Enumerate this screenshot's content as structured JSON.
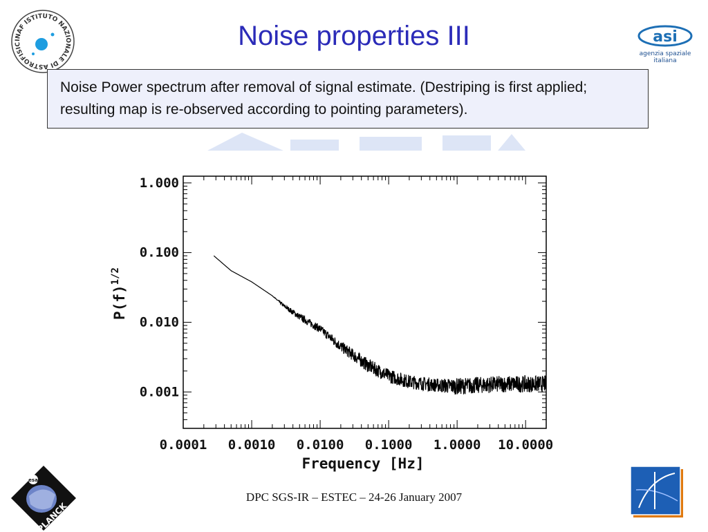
{
  "slide": {
    "title": "Noise properties III",
    "text": "Noise Power spectrum after removal of signal estimate. (Destriping is first applied; resulting map is re-observed according to pointing parameters).",
    "footer": "DPC SGS-IR – ESTEC – 24-26 January 2007"
  },
  "logos": {
    "inaf_text": "INAF ISTITUTO NAZIONALE DI ASTROFISICA",
    "asi_line1": "agenzia spaziale",
    "asi_line2": "italiana",
    "planck_text": "PLANCK",
    "esa_text": "esa"
  },
  "colors": {
    "title": "#2b2bb8",
    "textbox_bg": "#eef0fb",
    "line": "#000000"
  },
  "chart_data": {
    "type": "line",
    "xlabel": "Frequency [Hz]",
    "ylabel": "P(f)",
    "ylabel_sup": "1/2",
    "x_scale": "log",
    "y_scale": "log",
    "xlim": [
      0.0001,
      20.0
    ],
    "ylim": [
      0.0003,
      1.25
    ],
    "x_ticks": [
      0.0001,
      0.001,
      0.01,
      0.1,
      1.0,
      10.0
    ],
    "x_tick_labels": [
      "0.0001",
      "0.0010",
      "0.0100",
      "0.1000",
      "1.0000",
      "10.0000"
    ],
    "y_ticks": [
      0.001,
      0.01,
      0.1,
      1.0
    ],
    "y_tick_labels": [
      "0.001",
      "0.010",
      "0.100",
      "1.000"
    ],
    "grid": false,
    "series": [
      {
        "x": [
          0.00028,
          0.0005,
          0.001,
          0.002,
          0.003,
          0.005,
          0.01,
          0.02,
          0.05,
          0.1,
          0.2,
          0.5,
          1.0,
          2.0,
          5.0,
          10.0,
          20.0
        ],
        "y": [
          0.09,
          0.055,
          0.038,
          0.024,
          0.017,
          0.012,
          0.008,
          0.0045,
          0.0024,
          0.0017,
          0.0014,
          0.00125,
          0.0012,
          0.00125,
          0.0013,
          0.0013,
          0.0013
        ],
        "noise_scatter_dex": [
          0,
          0,
          0,
          0,
          0.03,
          0.05,
          0.06,
          0.08,
          0.1,
          0.1,
          0.1,
          0.1,
          0.12,
          0.12,
          0.12,
          0.12,
          0.12
        ]
      }
    ]
  }
}
